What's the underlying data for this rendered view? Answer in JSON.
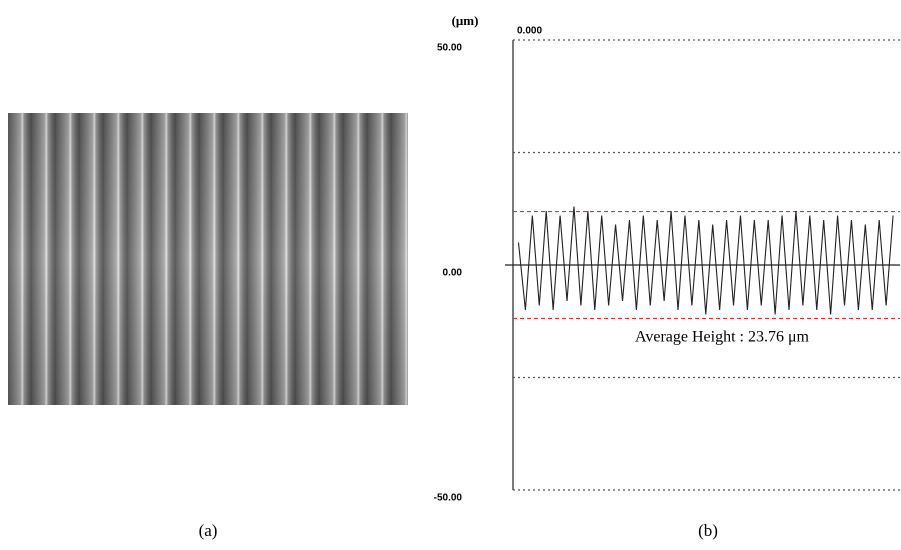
{
  "panel_labels": [
    "(a)",
    "(b)"
  ],
  "chart_data": {
    "type": "line",
    "y_label": "(μm)",
    "annotations": [
      "0.000",
      "Average Height : 23.76 μm"
    ],
    "x": [
      0,
      1,
      2,
      3,
      4,
      5,
      6,
      7,
      8,
      9,
      10,
      11,
      12,
      13,
      14,
      15,
      16,
      17,
      18,
      19,
      20,
      21,
      22,
      23,
      24,
      25,
      26,
      27,
      28,
      29,
      30,
      31,
      32,
      33,
      34,
      35,
      36,
      37,
      38,
      39,
      40,
      41,
      42,
      43,
      44,
      45,
      46,
      47,
      48,
      49,
      50,
      51,
      52,
      53,
      54
    ],
    "series": [
      {
        "color": "#222222",
        "values": [
          5,
          -10,
          11,
          -9,
          12,
          -10,
          11,
          -8,
          13,
          -9,
          12,
          -10,
          11,
          -9,
          9,
          -8,
          10,
          -10,
          11,
          -9,
          10,
          -8,
          12,
          -10,
          11,
          -9,
          10,
          -11,
          9,
          -10,
          10,
          -9,
          11,
          -10,
          10,
          -9,
          10,
          -11,
          11,
          -10,
          12,
          -9,
          11,
          -10,
          10,
          -11,
          11,
          -9,
          10,
          -10,
          9,
          -10,
          10,
          -9,
          11
        ]
      }
    ],
    "xlim": [
      -0.5,
      55
    ],
    "ylim": [
      -50,
      50
    ],
    "yticks": [
      {
        "value": 50,
        "label": "50.00"
      },
      {
        "value": 0,
        "label": "0.00"
      },
      {
        "value": -50,
        "label": "-50.00"
      }
    ],
    "minor_gridlines": [
      25,
      -25
    ],
    "reference_lines": [
      {
        "value": 11.88,
        "color": "#e03030"
      },
      {
        "value": -11.88,
        "color": "#e03030"
      }
    ],
    "grid_color": "#555555"
  }
}
